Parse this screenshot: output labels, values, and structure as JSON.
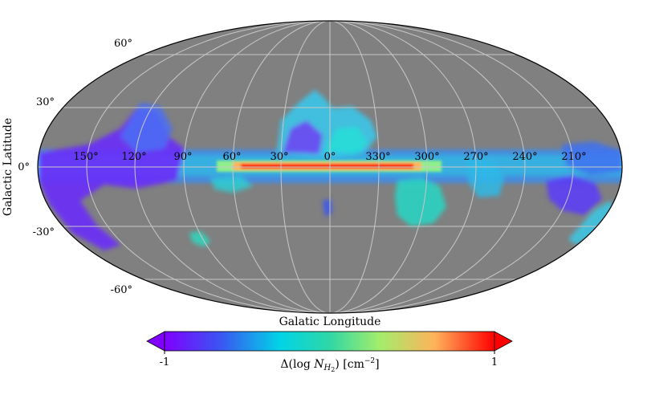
{
  "projection": "mollweide",
  "background_color": "#808080",
  "grid_color": "#c8c8c8",
  "latitude_tick_labels": [
    "60°",
    "30°",
    "0°",
    "-30°",
    "-60°"
  ],
  "longitude_tick_labels": [
    "150°",
    "120°",
    "90°",
    "60°",
    "30°",
    "0°",
    "330°",
    "300°",
    "270°",
    "240°",
    "210°"
  ],
  "axis_labels": {
    "x": "Galatic Longitude",
    "y": "Galactic Latitude"
  },
  "colorbar": {
    "label_parts": {
      "delta": "Δ(log ",
      "var": "N",
      "sub": "H",
      "subsub": "2",
      "close": ")",
      "units": " [cm",
      "exp": "−2",
      "units_close": "]"
    },
    "min_label": "-1",
    "max_label": "1",
    "extend": "both",
    "colormap": "rainbow",
    "colors": [
      "#7f00ff",
      "#3a56f3",
      "#00d4e6",
      "#2fd7a6",
      "#a2ee6c",
      "#ffb25a",
      "#ff0000"
    ]
  }
}
